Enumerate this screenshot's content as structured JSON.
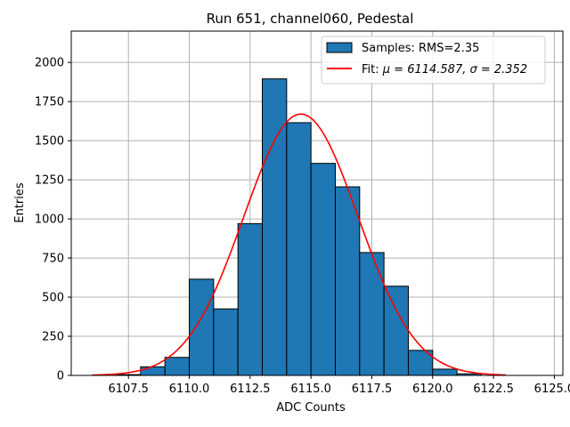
{
  "chart_data": {
    "type": "bar",
    "title": "Run 651, channel060, Pedestal",
    "xlabel": "ADC Counts",
    "ylabel": "Entries",
    "xlim": [
      6105.15,
      6125.35
    ],
    "ylim": [
      0,
      2200
    ],
    "grid": true,
    "legend_position": "top-right",
    "x_ticks": [
      6107.5,
      6110.0,
      6112.5,
      6115.0,
      6117.5,
      6120.0,
      6122.5,
      6125.0
    ],
    "x_tick_labels": [
      "6107.5",
      "6110.0",
      "6112.5",
      "6115.0",
      "6117.5",
      "6120.0",
      "6122.5",
      "6125.0"
    ],
    "y_ticks": [
      0,
      250,
      500,
      750,
      1000,
      1250,
      1500,
      1750,
      2000
    ],
    "y_tick_labels": [
      "0",
      "250",
      "500",
      "750",
      "1000",
      "1250",
      "1500",
      "1750",
      "2000"
    ],
    "histogram": {
      "label": "Samples: RMS=2.35",
      "color": "#1f77b4",
      "edge_color": "#000000",
      "bin_edges": [
        6107,
        6108,
        6109,
        6110,
        6111,
        6112,
        6113,
        6114,
        6115,
        6116,
        6117,
        6118,
        6119,
        6120,
        6121,
        6122
      ],
      "counts": [
        5,
        55,
        115,
        615,
        425,
        970,
        1895,
        1615,
        1355,
        1205,
        785,
        570,
        160,
        40,
        10
      ]
    },
    "fit": {
      "label_prefix": "Fit: ",
      "label_math": "μ = 6114.587, σ = 2.352",
      "color": "#ff0000",
      "type": "gaussian",
      "mu": 6114.587,
      "sigma": 2.352,
      "amplitude": 1670,
      "x_range": [
        6106,
        6123
      ]
    }
  }
}
